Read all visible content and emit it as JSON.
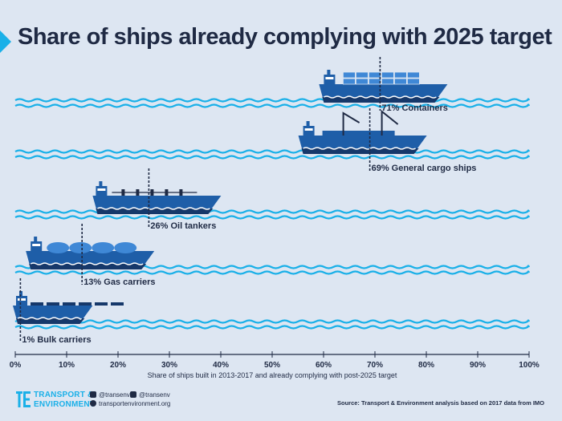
{
  "colors": {
    "background": "#dde6f2",
    "ship": "#1e5ea8",
    "hull_dark": "#16386a",
    "cyan": "#1ab0e8",
    "text": "#1f2a44"
  },
  "chart_data": {
    "type": "bar",
    "title": "Share of ships already complying with 2025 target",
    "xlabel": "Share of ships built in 2013-2017 and already complying with post-2025 target",
    "xlim": [
      0,
      100
    ],
    "x_ticks": [
      "0%",
      "10%",
      "20%",
      "30%",
      "40%",
      "50%",
      "60%",
      "70%",
      "80%",
      "90%",
      "100%"
    ],
    "categories": [
      "Containers",
      "General cargo ships",
      "Oil tankers",
      "Gas carriers",
      "Bulk carriers"
    ],
    "values": [
      71,
      69,
      26,
      13,
      1
    ],
    "data_labels": [
      "71% Containers",
      "69% General cargo ships",
      "26% Oil tankers",
      "13% Gas carriers",
      "1% Bulk carriers"
    ],
    "icons": [
      "container-ship-icon",
      "general-cargo-ship-icon",
      "oil-tanker-icon",
      "gas-carrier-icon",
      "bulk-carrier-icon"
    ]
  },
  "footer": {
    "brand_line1": "TRANSPORT &",
    "brand_line2": "ENVIRONMENT",
    "twitter": "@transenv",
    "facebook": "@transenv",
    "website": "transportenvironment.org",
    "source": "Source: Transport & Environment analysis based on 2017 data from IMO"
  }
}
